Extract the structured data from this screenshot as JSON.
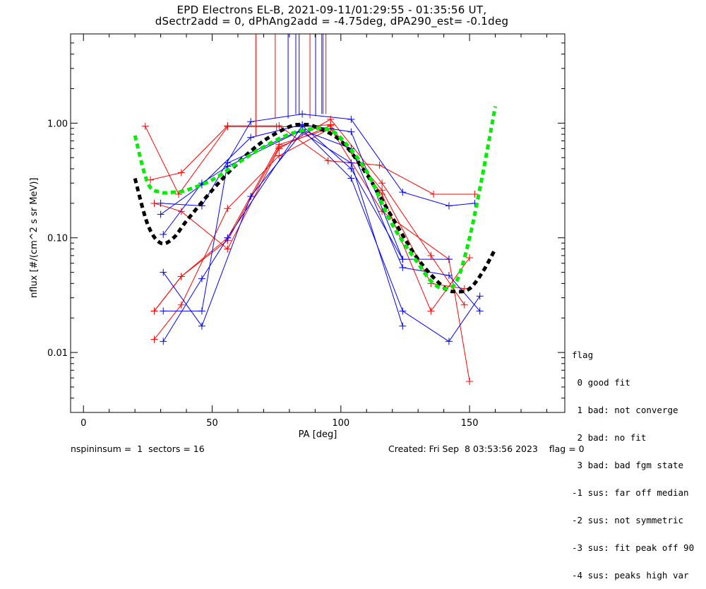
{
  "chart_data": {
    "type": "line",
    "title": "EPD Electrons EL-B, 2021-09-11/01:29:55 - 01:35:56 UT,",
    "subtitle": "dSectr2add = 0, dPhAng2add = -4.75deg, dPA290_est=  -0.1deg",
    "xlabel": "PA [deg]",
    "ylabel": "nflux [#/(cm^2 s sr MeV)]",
    "xlim": [
      -5,
      187
    ],
    "ylim": [
      0.003,
      6.0
    ],
    "yscale": "log",
    "xticks": [
      0,
      50,
      100,
      150
    ],
    "xtick_labels": [
      "0",
      "50",
      "100",
      "150"
    ],
    "yticks": [
      1.0,
      0.1,
      0.01
    ],
    "ytick_labels": [
      "1.00",
      "0.10",
      "0.01"
    ],
    "grid": false,
    "series": [
      {
        "name": "red-1",
        "color": "#ff0000",
        "x": [
          24,
          37,
          56,
          75,
          85,
          96
        ],
        "y": [
          0.94,
          0.24,
          0.93,
          0.93,
          0.93,
          0.97
        ]
      },
      {
        "name": "red-2",
        "color": "#ff0000",
        "x": [
          26,
          38,
          56,
          76,
          95,
          115,
          136,
          152
        ],
        "y": [
          0.32,
          0.37,
          0.95,
          0.95,
          0.47,
          0.43,
          0.24,
          0.24
        ]
      },
      {
        "name": "red-3",
        "color": "#ff0000",
        "x": [
          27.5,
          38,
          56,
          76,
          96,
          116,
          135,
          148
        ],
        "y": [
          0.2,
          0.17,
          0.08,
          0.6,
          1.08,
          0.3,
          0.07,
          0.026
        ]
      },
      {
        "name": "red-4",
        "color": "#ff0000",
        "x": [
          27.5,
          38,
          56,
          76,
          96,
          116,
          142,
          150
        ],
        "y": [
          0.023,
          0.046,
          0.1,
          0.65,
          0.9,
          0.17,
          0.065,
          0.0056
        ]
      },
      {
        "name": "red-5",
        "color": "#ff0000",
        "x": [
          27.5,
          38,
          56,
          76,
          96,
          116,
          135,
          148
        ],
        "y": [
          0.013,
          0.026,
          0.18,
          0.52,
          0.9,
          0.26,
          0.04,
          0.036
        ]
      },
      {
        "name": "red-6",
        "color": "#ff0000",
        "x": [
          27.5,
          38,
          56,
          76,
          96,
          116,
          135,
          150
        ],
        "y": [
          0.023,
          0.046,
          0.095,
          0.62,
          0.95,
          0.24,
          0.023,
          0.067
        ]
      },
      {
        "name": "blue-1",
        "color": "#0000ff",
        "x": [
          30,
          46,
          65,
          85,
          104,
          124,
          142,
          152
        ],
        "y": [
          0.2,
          0.19,
          1.03,
          1.2,
          1.08,
          0.25,
          0.19,
          0.2
        ]
      },
      {
        "name": "blue-2",
        "color": "#0000ff",
        "x": [
          30,
          46,
          65,
          85,
          104,
          124,
          142
        ],
        "y": [
          0.16,
          0.29,
          0.75,
          0.97,
          0.84,
          0.065,
          0.065
        ]
      },
      {
        "name": "blue-3",
        "color": "#0000ff",
        "x": [
          31,
          46,
          56,
          85,
          104,
          124,
          142,
          154
        ],
        "y": [
          0.107,
          0.3,
          0.42,
          0.87,
          0.6,
          0.055,
          0.047,
          0.023
        ]
      },
      {
        "name": "blue-4",
        "color": "#0000ff",
        "x": [
          31,
          46,
          65,
          85,
          104,
          124
        ],
        "y": [
          0.05,
          0.017,
          0.23,
          0.83,
          0.45,
          0.017
        ]
      },
      {
        "name": "blue-5",
        "color": "#0000ff",
        "x": [
          31,
          46,
          56,
          85,
          104,
          124,
          142,
          154
        ],
        "y": [
          0.023,
          0.023,
          0.45,
          0.88,
          0.33,
          0.023,
          0.0125,
          0.031
        ]
      },
      {
        "name": "blue-6",
        "color": "#0000ff",
        "x": [
          31,
          46,
          56,
          85,
          104,
          124
        ],
        "y": [
          0.0125,
          0.044,
          0.1,
          0.95,
          0.4,
          0.065
        ]
      }
    ],
    "fits": [
      {
        "name": "fit-black",
        "color": "#000000",
        "x": [
          20,
          25,
          30,
          35,
          40,
          50,
          60,
          70,
          80,
          85,
          90,
          100,
          110,
          120,
          130,
          140,
          145,
          150,
          155,
          160
        ],
        "y": [
          0.33,
          0.13,
          0.09,
          0.1,
          0.14,
          0.26,
          0.45,
          0.7,
          0.93,
          0.97,
          0.93,
          0.7,
          0.36,
          0.15,
          0.065,
          0.037,
          0.034,
          0.036,
          0.05,
          0.08
        ]
      },
      {
        "name": "fit-green",
        "color": "#00ee00",
        "x": [
          20,
          25,
          30,
          35,
          40,
          50,
          60,
          70,
          80,
          90,
          95,
          100,
          110,
          120,
          130,
          135,
          140,
          145,
          150,
          155,
          160
        ],
        "y": [
          0.78,
          0.3,
          0.25,
          0.25,
          0.26,
          0.32,
          0.45,
          0.62,
          0.8,
          0.9,
          0.88,
          0.74,
          0.38,
          0.13,
          0.06,
          0.042,
          0.036,
          0.042,
          0.1,
          0.35,
          1.4
        ]
      }
    ],
    "vertical_lines": [
      {
        "color": "#ff0000",
        "x": 67,
        "y0": 0.77
      },
      {
        "color": "#ff0000",
        "x": 74.5,
        "y0": 1.1
      },
      {
        "color": "#0000ff",
        "x": 79.5,
        "y0": 1.1
      },
      {
        "color": "#0000ff",
        "x": 82.5,
        "y0": 1.2
      },
      {
        "color": "#0000ff",
        "x": 83.8,
        "y0": 1.2
      },
      {
        "color": "#ff0000",
        "x": 88,
        "y0": 1.1
      },
      {
        "color": "#0000ff",
        "x": 90.2,
        "y0": 1.15
      },
      {
        "color": "#0000ff",
        "x": 92.6,
        "y0": 1.2
      },
      {
        "color": "#ff0000",
        "x": 93.1,
        "y0": 1.2
      },
      {
        "color": "#ff0000",
        "x": 94.2,
        "y0": 1.2
      }
    ]
  },
  "legend": {
    "title": "flag",
    "items": [
      " 0 good fit",
      " 1 bad: not converge",
      " 2 bad: no fit",
      " 3 bad: bad fgm state",
      "-1 sus: far off median",
      "-2 sus: not symmetric",
      "-3 sus: fit peak off 90",
      "-4 sus: peaks high var"
    ]
  },
  "footer": {
    "left": "nspininsum =  1  sectors = 16",
    "right": "Created: Fri Sep  8 03:53:56 2023    flag = 0"
  }
}
